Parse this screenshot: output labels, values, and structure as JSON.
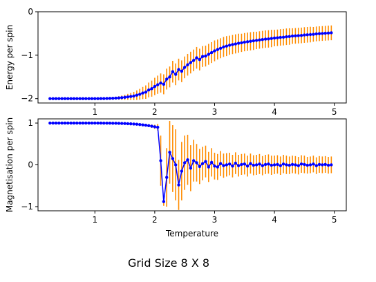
{
  "figure": {
    "caption": "Grid Size 8 X 8"
  },
  "colors": {
    "line": "#0000ff",
    "errorbar": "#ff8c00",
    "axes": "#000000"
  },
  "chart_data": [
    {
      "type": "line",
      "ylabel": "Energy per spin",
      "xlabel": "",
      "xlim": [
        0.05,
        5.2
      ],
      "ylim": [
        -2.1,
        0.0
      ],
      "xticks": [
        1,
        2,
        3,
        4,
        5
      ],
      "yticks": [
        0,
        -1,
        -2
      ],
      "xticklabels_visible": true,
      "grid": false,
      "errorbars": true,
      "x": [
        0.25,
        0.3,
        0.35,
        0.4,
        0.45,
        0.5,
        0.55,
        0.6,
        0.65,
        0.7,
        0.75,
        0.8,
        0.85,
        0.9,
        0.95,
        1.0,
        1.05,
        1.1,
        1.15,
        1.2,
        1.25,
        1.3,
        1.35,
        1.4,
        1.45,
        1.5,
        1.55,
        1.6,
        1.65,
        1.7,
        1.75,
        1.8,
        1.85,
        1.9,
        1.95,
        2.0,
        2.05,
        2.1,
        2.15,
        2.2,
        2.25,
        2.3,
        2.35,
        2.4,
        2.45,
        2.5,
        2.55,
        2.6,
        2.65,
        2.7,
        2.75,
        2.8,
        2.85,
        2.9,
        2.95,
        3.0,
        3.05,
        3.1,
        3.15,
        3.2,
        3.25,
        3.3,
        3.35,
        3.4,
        3.45,
        3.5,
        3.55,
        3.6,
        3.65,
        3.7,
        3.75,
        3.8,
        3.85,
        3.9,
        3.95,
        4.0,
        4.05,
        4.1,
        4.15,
        4.2,
        4.25,
        4.3,
        4.35,
        4.4,
        4.45,
        4.5,
        4.55,
        4.6,
        4.65,
        4.7,
        4.75,
        4.8,
        4.85,
        4.9,
        4.95
      ],
      "y": [
        -2.0,
        -2.0,
        -2.0,
        -2.0,
        -2.0,
        -2.0,
        -2.0,
        -2.0,
        -2.0,
        -2.0,
        -2.0,
        -2.0,
        -2.0,
        -2.0,
        -2.0,
        -2.0,
        -1.999,
        -1.998,
        -1.997,
        -1.996,
        -1.994,
        -1.991,
        -1.988,
        -1.983,
        -1.977,
        -1.97,
        -1.96,
        -1.95,
        -1.94,
        -1.92,
        -1.9,
        -1.87,
        -1.85,
        -1.8,
        -1.77,
        -1.72,
        -1.68,
        -1.64,
        -1.67,
        -1.55,
        -1.5,
        -1.38,
        -1.44,
        -1.33,
        -1.37,
        -1.28,
        -1.22,
        -1.17,
        -1.12,
        -1.06,
        -1.1,
        -1.03,
        -1.02,
        -0.98,
        -0.94,
        -0.9,
        -0.87,
        -0.84,
        -0.81,
        -0.79,
        -0.77,
        -0.755,
        -0.74,
        -0.725,
        -0.715,
        -0.7,
        -0.69,
        -0.68,
        -0.67,
        -0.66,
        -0.65,
        -0.64,
        -0.63,
        -0.625,
        -0.615,
        -0.605,
        -0.6,
        -0.59,
        -0.585,
        -0.575,
        -0.57,
        -0.56,
        -0.555,
        -0.55,
        -0.545,
        -0.535,
        -0.53,
        -0.525,
        -0.52,
        -0.51,
        -0.505,
        -0.5,
        -0.495,
        -0.49,
        -0.485
      ],
      "err": [
        0,
        0,
        0,
        0,
        0,
        0,
        0,
        0,
        0,
        0,
        0,
        0,
        0,
        0,
        0,
        0,
        0.005,
        0.008,
        0.012,
        0.016,
        0.02,
        0.025,
        0.03,
        0.04,
        0.05,
        0.06,
        0.07,
        0.08,
        0.095,
        0.11,
        0.125,
        0.14,
        0.155,
        0.17,
        0.185,
        0.2,
        0.21,
        0.22,
        0.23,
        0.24,
        0.24,
        0.25,
        0.25,
        0.25,
        0.25,
        0.25,
        0.25,
        0.25,
        0.25,
        0.25,
        0.25,
        0.24,
        0.24,
        0.24,
        0.24,
        0.24,
        0.23,
        0.23,
        0.23,
        0.23,
        0.22,
        0.22,
        0.22,
        0.22,
        0.21,
        0.21,
        0.21,
        0.21,
        0.21,
        0.2,
        0.2,
        0.2,
        0.2,
        0.2,
        0.2,
        0.19,
        0.19,
        0.19,
        0.19,
        0.19,
        0.19,
        0.18,
        0.18,
        0.18,
        0.18,
        0.18,
        0.18,
        0.18,
        0.17,
        0.17,
        0.17,
        0.17,
        0.17,
        0.17,
        0.17
      ]
    },
    {
      "type": "line",
      "ylabel": "Magnetisation per spin",
      "xlabel": "Temperature",
      "xlim": [
        0.05,
        5.2
      ],
      "ylim": [
        -1.1,
        1.1
      ],
      "xticks": [
        1,
        2,
        3,
        4,
        5
      ],
      "yticks": [
        1,
        0,
        -1
      ],
      "xticklabels_visible": true,
      "grid": false,
      "errorbars": true,
      "x": [
        0.25,
        0.3,
        0.35,
        0.4,
        0.45,
        0.5,
        0.55,
        0.6,
        0.65,
        0.7,
        0.75,
        0.8,
        0.85,
        0.9,
        0.95,
        1.0,
        1.05,
        1.1,
        1.15,
        1.2,
        1.25,
        1.3,
        1.35,
        1.4,
        1.45,
        1.5,
        1.55,
        1.6,
        1.65,
        1.7,
        1.75,
        1.8,
        1.85,
        1.9,
        1.95,
        2.0,
        2.05,
        2.1,
        2.15,
        2.2,
        2.25,
        2.3,
        2.35,
        2.4,
        2.45,
        2.5,
        2.55,
        2.6,
        2.65,
        2.7,
        2.75,
        2.8,
        2.85,
        2.9,
        2.95,
        3.0,
        3.05,
        3.1,
        3.15,
        3.2,
        3.25,
        3.3,
        3.35,
        3.4,
        3.45,
        3.5,
        3.55,
        3.6,
        3.65,
        3.7,
        3.75,
        3.8,
        3.85,
        3.9,
        3.95,
        4.0,
        4.05,
        4.1,
        4.15,
        4.2,
        4.25,
        4.3,
        4.35,
        4.4,
        4.45,
        4.5,
        4.55,
        4.6,
        4.65,
        4.7,
        4.75,
        4.8,
        4.85,
        4.9,
        4.95
      ],
      "y": [
        1.0,
        1.0,
        1.0,
        1.0,
        1.0,
        1.0,
        1.0,
        1.0,
        1.0,
        1.0,
        1.0,
        1.0,
        1.0,
        1.0,
        1.0,
        1.0,
        0.999,
        0.999,
        0.998,
        0.998,
        0.997,
        0.996,
        0.995,
        0.993,
        0.991,
        0.989,
        0.986,
        0.982,
        0.977,
        0.972,
        0.965,
        0.957,
        0.948,
        0.937,
        0.925,
        0.91,
        0.9,
        0.1,
        -0.88,
        -0.3,
        0.3,
        0.15,
        0.0,
        -0.48,
        -0.15,
        0.05,
        0.12,
        -0.08,
        0.1,
        0.05,
        -0.04,
        0.03,
        0.08,
        -0.05,
        0.06,
        -0.03,
        -0.05,
        0.03,
        -0.02,
        0.0,
        0.02,
        -0.03,
        0.04,
        -0.02,
        0.01,
        0.02,
        -0.03,
        0.03,
        -0.01,
        0.0,
        0.02,
        -0.02,
        0.01,
        0.02,
        -0.01,
        0.0,
        0.01,
        -0.02,
        0.02,
        0.0,
        -0.01,
        0.01,
        0.0,
        -0.02,
        0.02,
        0.01,
        -0.01,
        0.0,
        0.02,
        -0.02,
        0.01,
        0.0,
        0.01,
        -0.01,
        0.0
      ],
      "err": [
        0,
        0,
        0,
        0,
        0,
        0,
        0,
        0,
        0,
        0,
        0,
        0,
        0,
        0,
        0,
        0,
        0.002,
        0.002,
        0.003,
        0.003,
        0.004,
        0.005,
        0.006,
        0.007,
        0.008,
        0.01,
        0.012,
        0.014,
        0.016,
        0.018,
        0.02,
        0.025,
        0.03,
        0.035,
        0.04,
        0.05,
        0.08,
        0.6,
        0.1,
        0.7,
        0.75,
        0.8,
        0.85,
        0.6,
        0.7,
        0.65,
        0.6,
        0.55,
        0.5,
        0.45,
        0.42,
        0.4,
        0.38,
        0.36,
        0.34,
        0.32,
        0.31,
        0.3,
        0.29,
        0.28,
        0.27,
        0.27,
        0.26,
        0.26,
        0.25,
        0.25,
        0.25,
        0.24,
        0.24,
        0.24,
        0.24,
        0.23,
        0.23,
        0.23,
        0.23,
        0.22,
        0.22,
        0.22,
        0.22,
        0.22,
        0.21,
        0.21,
        0.21,
        0.21,
        0.21,
        0.21,
        0.2,
        0.2,
        0.2,
        0.2,
        0.2,
        0.2,
        0.2,
        0.2,
        0.2
      ]
    }
  ]
}
